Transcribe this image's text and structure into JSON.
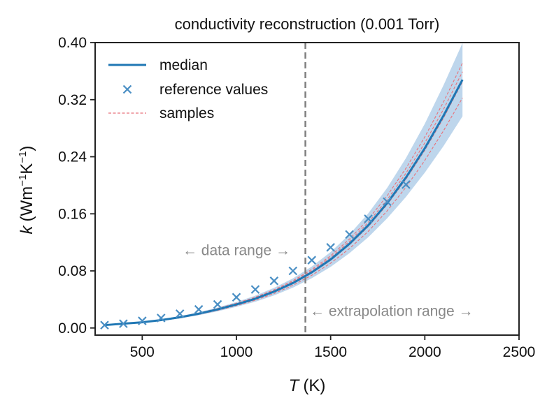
{
  "chart_data": {
    "type": "line",
    "title": "conductivity reconstruction (0.001 Torr)",
    "xlabel": {
      "symbol": "T",
      "unit": "(K)"
    },
    "ylabel": {
      "symbol": "k",
      "unit_pre": "(Wm",
      "exp1": "−1",
      "unit_mid": "K",
      "exp2": "−1",
      "unit_post": ")"
    },
    "xlim": [
      250,
      2500
    ],
    "ylim": [
      -0.01,
      0.4
    ],
    "xticks": [
      500,
      1000,
      1500,
      2000,
      2500
    ],
    "xtick_labels": [
      "500",
      "1000",
      "1500",
      "2000",
      "2500"
    ],
    "yticks": [
      0.0,
      0.08,
      0.16,
      0.24,
      0.32,
      0.4
    ],
    "ytick_labels": [
      "0.00",
      "0.08",
      "0.16",
      "0.24",
      "0.32",
      "0.40"
    ],
    "legend": {
      "location": "upper-left",
      "entries": [
        "median",
        "reference values",
        "samples"
      ]
    },
    "median": {
      "name": "median",
      "color": "#1f77b4",
      "x": [
        300,
        400,
        500,
        600,
        700,
        800,
        900,
        1000,
        1100,
        1200,
        1300,
        1400,
        1500,
        1600,
        1700,
        1800,
        1900,
        2000,
        2100,
        2200
      ],
      "y": [
        0.004,
        0.006,
        0.008,
        0.011,
        0.015,
        0.02,
        0.026,
        0.033,
        0.041,
        0.051,
        0.063,
        0.078,
        0.096,
        0.118,
        0.144,
        0.175,
        0.211,
        0.252,
        0.298,
        0.348
      ]
    },
    "band": {
      "color": "#a8c8e6",
      "x": [
        300,
        400,
        500,
        600,
        700,
        800,
        900,
        1000,
        1100,
        1200,
        1300,
        1400,
        1500,
        1600,
        1700,
        1800,
        1900,
        2000,
        2100,
        2200
      ],
      "upper": [
        0.0045,
        0.0066,
        0.0089,
        0.0122,
        0.0166,
        0.0221,
        0.0287,
        0.0364,
        0.0453,
        0.0563,
        0.0695,
        0.0862,
        0.1064,
        0.1312,
        0.1607,
        0.1963,
        0.2382,
        0.2862,
        0.3407,
        0.3994
      ],
      "lower": [
        0.0035,
        0.0054,
        0.0071,
        0.0098,
        0.0134,
        0.0179,
        0.0233,
        0.0296,
        0.0367,
        0.0457,
        0.0565,
        0.0698,
        0.0856,
        0.1048,
        0.1273,
        0.1537,
        0.1838,
        0.2178,
        0.2553,
        0.2966
      ]
    },
    "samples": {
      "name": "samples",
      "color": "#e8727a",
      "x": [
        300,
        400,
        500,
        600,
        700,
        800,
        900,
        1000,
        1100,
        1200,
        1300,
        1400,
        1500,
        1600,
        1700,
        1800,
        1900,
        2000,
        2100,
        2200
      ],
      "series": [
        [
          0.0042,
          0.0063,
          0.0085,
          0.0116,
          0.0158,
          0.021,
          0.0273,
          0.0347,
          0.0431,
          0.0536,
          0.0662,
          0.0821,
          0.1012,
          0.1246,
          0.1524,
          0.1853,
          0.2239,
          0.2679,
          0.3173,
          0.3715
        ],
        [
          0.0038,
          0.0057,
          0.0076,
          0.0104,
          0.0142,
          0.019,
          0.0247,
          0.0313,
          0.0389,
          0.0484,
          0.0598,
          0.0739,
          0.0908,
          0.1113,
          0.1355,
          0.1641,
          0.1973,
          0.2349,
          0.2768,
          0.3226
        ],
        [
          0.0041,
          0.0061,
          0.0082,
          0.0113,
          0.0154,
          0.0205,
          0.0267,
          0.0339,
          0.0422,
          0.0524,
          0.0648,
          0.0803,
          0.0988,
          0.1214,
          0.1481,
          0.1798,
          0.217,
          0.2594,
          0.307,
          0.3592
        ],
        [
          0.0039,
          0.0059,
          0.0079,
          0.0108,
          0.0147,
          0.0197,
          0.0256,
          0.0325,
          0.0404,
          0.0503,
          0.0621,
          0.077,
          0.0948,
          0.1165,
          0.1421,
          0.1728,
          0.2084,
          0.2491,
          0.2947,
          0.345
        ]
      ]
    },
    "reference_values": {
      "name": "reference values",
      "color": "#4a8fc4",
      "x": [
        300,
        400,
        500,
        600,
        700,
        800,
        900,
        1000,
        1100,
        1200,
        1300,
        1400,
        1500,
        1600,
        1700,
        1800,
        1900
      ],
      "y": [
        0.004,
        0.006,
        0.01,
        0.014,
        0.02,
        0.026,
        0.033,
        0.043,
        0.054,
        0.066,
        0.08,
        0.095,
        0.113,
        0.131,
        0.153,
        0.177,
        0.201
      ]
    },
    "vline": {
      "x": 1366,
      "color": "#808080",
      "style": "dashed"
    },
    "annotations": [
      {
        "text": "← data range →",
        "x": 1000,
        "y": 0.109
      },
      {
        "text": "← extrapolation range →",
        "x": 1390,
        "y": 0.024
      }
    ]
  }
}
